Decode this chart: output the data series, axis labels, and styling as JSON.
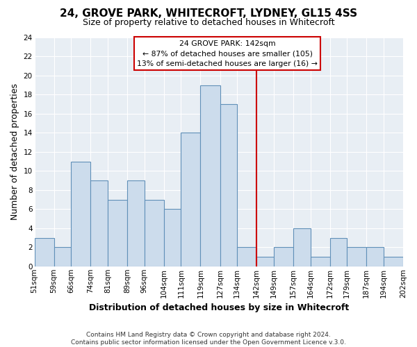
{
  "title": "24, GROVE PARK, WHITECROFT, LYDNEY, GL15 4SS",
  "subtitle": "Size of property relative to detached houses in Whitecroft",
  "xlabel": "Distribution of detached houses by size in Whitecroft",
  "ylabel": "Number of detached properties",
  "footer_line1": "Contains HM Land Registry data © Crown copyright and database right 2024.",
  "footer_line2": "Contains public sector information licensed under the Open Government Licence v.3.0.",
  "bin_labels": [
    "51sqm",
    "59sqm",
    "66sqm",
    "74sqm",
    "81sqm",
    "89sqm",
    "96sqm",
    "104sqm",
    "111sqm",
    "119sqm",
    "127sqm",
    "134sqm",
    "142sqm",
    "149sqm",
    "157sqm",
    "164sqm",
    "172sqm",
    "179sqm",
    "187sqm",
    "194sqm",
    "202sqm"
  ],
  "bar_heights": [
    3,
    2,
    11,
    9,
    7,
    9,
    7,
    6,
    14,
    19,
    17,
    2,
    1,
    2,
    4,
    1,
    3,
    2,
    2,
    1,
    0
  ],
  "bar_color": "#ccdcec",
  "bar_edge_color": "#6090b8",
  "vline_x_idx": 12,
  "vline_color": "#cc0000",
  "annotation_title": "24 GROVE PARK: 142sqm",
  "annotation_line1": "← 87% of detached houses are smaller (105)",
  "annotation_line2": "13% of semi-detached houses are larger (16) →",
  "annotation_box_facecolor": "#ffffff",
  "annotation_box_edgecolor": "#cc0000",
  "ylim": [
    0,
    24
  ],
  "yticks": [
    0,
    2,
    4,
    6,
    8,
    10,
    12,
    14,
    16,
    18,
    20,
    22,
    24
  ],
  "bin_edges": [
    51,
    59,
    66,
    74,
    81,
    89,
    96,
    104,
    111,
    119,
    127,
    134,
    142,
    149,
    157,
    164,
    172,
    179,
    187,
    194,
    202
  ],
  "plot_bg_color": "#e8eef4",
  "fig_bg_color": "#ffffff",
  "grid_color": "#ffffff",
  "title_fontsize": 11,
  "subtitle_fontsize": 9,
  "ylabel_fontsize": 9,
  "xlabel_fontsize": 9,
  "tick_fontsize": 7.5,
  "footer_fontsize": 6.5
}
